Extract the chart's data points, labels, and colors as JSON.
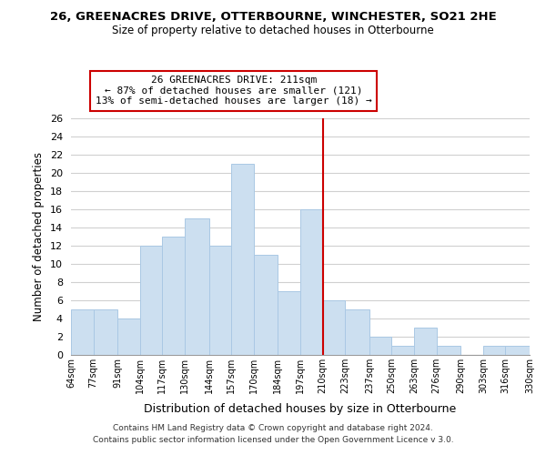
{
  "title1": "26, GREENACRES DRIVE, OTTERBOURNE, WINCHESTER, SO21 2HE",
  "title2": "Size of property relative to detached houses in Otterbourne",
  "xlabel": "Distribution of detached houses by size in Otterbourne",
  "ylabel": "Number of detached properties",
  "bin_edges": [
    64,
    77,
    91,
    104,
    117,
    130,
    144,
    157,
    170,
    184,
    197,
    210,
    223,
    237,
    250,
    263,
    276,
    290,
    303,
    316,
    330
  ],
  "bin_counts": [
    5,
    5,
    4,
    12,
    13,
    15,
    12,
    21,
    11,
    7,
    16,
    6,
    5,
    2,
    1,
    3,
    1,
    0,
    1,
    1
  ],
  "bar_color": "#ccdff0",
  "bar_edge_color": "#aac8e4",
  "vline_x": 210,
  "vline_color": "#cc0000",
  "ylim": [
    0,
    26
  ],
  "yticks": [
    0,
    2,
    4,
    6,
    8,
    10,
    12,
    14,
    16,
    18,
    20,
    22,
    24,
    26
  ],
  "xtick_labels": [
    "64sqm",
    "77sqm",
    "91sqm",
    "104sqm",
    "117sqm",
    "130sqm",
    "144sqm",
    "157sqm",
    "170sqm",
    "184sqm",
    "197sqm",
    "210sqm",
    "223sqm",
    "237sqm",
    "250sqm",
    "263sqm",
    "276sqm",
    "290sqm",
    "303sqm",
    "316sqm",
    "330sqm"
  ],
  "annotation_title": "26 GREENACRES DRIVE: 211sqm",
  "annotation_line1": "← 87% of detached houses are smaller (121)",
  "annotation_line2": "13% of semi-detached houses are larger (18) →",
  "annotation_box_color": "#ffffff",
  "annotation_box_edge": "#cc0000",
  "footer1": "Contains HM Land Registry data © Crown copyright and database right 2024.",
  "footer2": "Contains public sector information licensed under the Open Government Licence v 3.0.",
  "background_color": "#ffffff",
  "grid_color": "#d0d0d0"
}
